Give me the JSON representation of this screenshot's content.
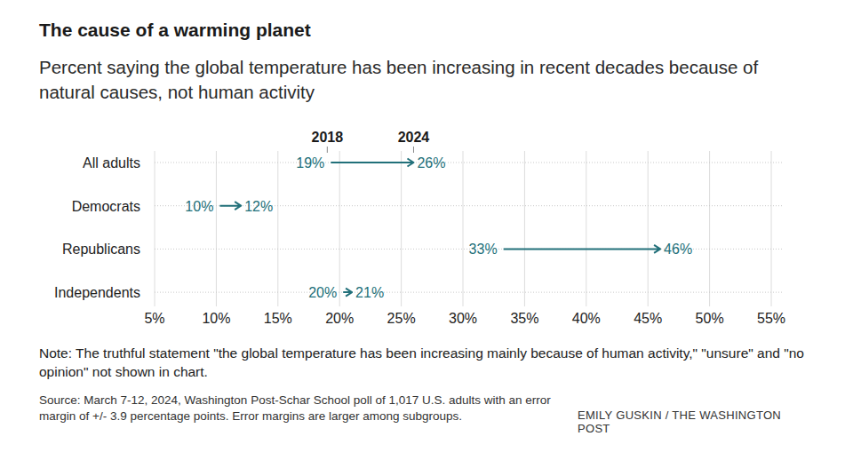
{
  "chart_data": {
    "type": "dumbbell",
    "orientation": "horizontal",
    "title": "The cause of a warming planet",
    "subtitle": "Percent saying the global temperature has been increasing in recent decades because of natural causes, not human activity",
    "categories": [
      "All adults",
      "Democrats",
      "Republicans",
      "Independents"
    ],
    "series": [
      {
        "name": "2018",
        "values": [
          19,
          10,
          33,
          20
        ],
        "value_labels": [
          "19%",
          "10%",
          "33%",
          "20%"
        ]
      },
      {
        "name": "2024",
        "values": [
          26,
          12,
          46,
          21
        ],
        "value_labels": [
          "26%",
          "12%",
          "46%",
          "21%"
        ]
      }
    ],
    "color": "#22707a",
    "xlim": [
      5,
      55
    ],
    "xticks": [
      {
        "value": 5,
        "label": "5%"
      },
      {
        "value": 10,
        "label": "10%"
      },
      {
        "value": 15,
        "label": "15%"
      },
      {
        "value": 20,
        "label": "20%"
      },
      {
        "value": 25,
        "label": "25%"
      },
      {
        "value": 30,
        "label": "30%"
      },
      {
        "value": 35,
        "label": "35%"
      },
      {
        "value": 40,
        "label": "40%"
      },
      {
        "value": 45,
        "label": "45%"
      },
      {
        "value": 50,
        "label": "50%"
      },
      {
        "value": 55,
        "label": "55%"
      }
    ],
    "grid": true,
    "data_labels": true,
    "annotations": [
      "Note: The truthful statement \"the global temperature has been increasing mainly because of human activity,\" \"unsure\" and \"no opinion\" not shown in chart.",
      "Source: March 7-12, 2024, Washington Post-Schar School poll of 1,017 U.S. adults with an error margin of +/- 3.9 percentage points. Error margins are larger among subgroups.",
      "EMILY GUSKIN / THE WASHINGTON POST"
    ]
  }
}
